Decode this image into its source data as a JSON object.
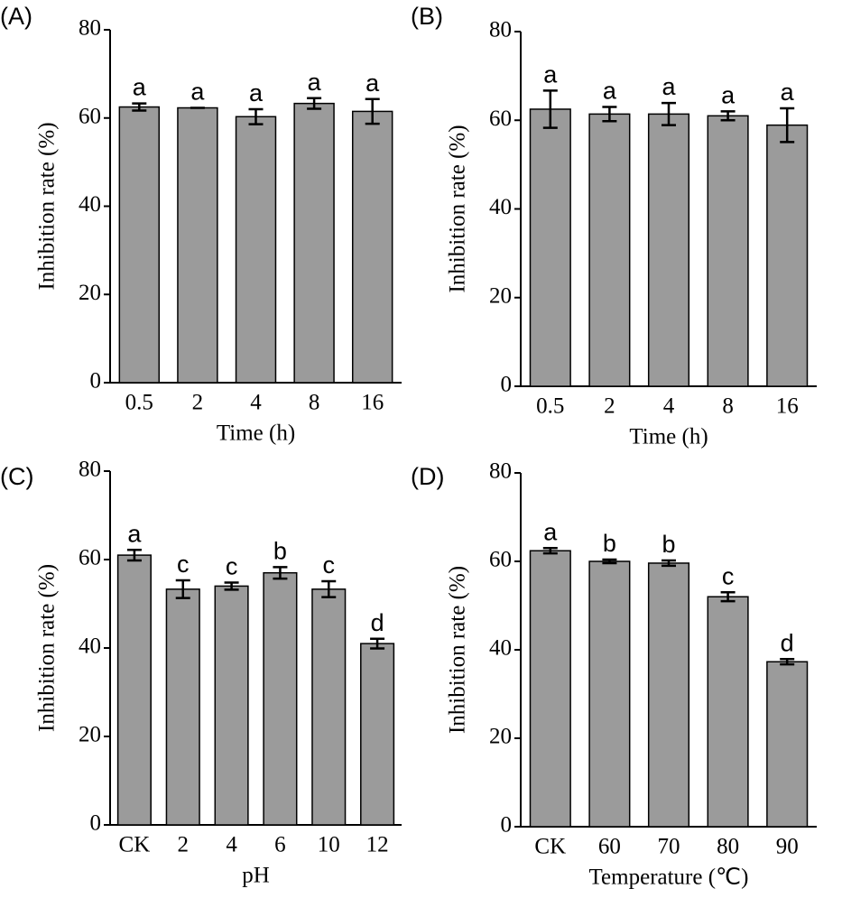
{
  "chart_data": [
    {
      "type": "bar",
      "panel_label": "(A)",
      "x_label": "Time (h)",
      "y_label": "Inhibition rate (%)",
      "categories": [
        "0.5",
        "2",
        "4",
        "8",
        "16"
      ],
      "values": [
        62.5,
        62.3,
        60.3,
        63.3,
        61.5
      ],
      "errors": [
        0.8,
        0,
        1.7,
        1.2,
        2.8
      ],
      "annotations": [
        "a",
        "a",
        "a",
        "a",
        "a"
      ],
      "color": "#9b9b9b",
      "ylim": [
        0,
        80
      ],
      "yticks": [
        0,
        20,
        40,
        60,
        80
      ]
    },
    {
      "type": "bar",
      "panel_label": "(B)",
      "x_label": "Time (h)",
      "y_label": "Inhibition rate (%)",
      "categories": [
        "0.5",
        "2",
        "4",
        "8",
        "16"
      ],
      "values": [
        62.5,
        61.4,
        61.4,
        61,
        58.9
      ],
      "errors": [
        4.2,
        1.6,
        2.5,
        1,
        3.8
      ],
      "annotations": [
        "a",
        "a",
        "a",
        "a",
        "a"
      ],
      "color": "#9b9b9b",
      "ylim": [
        0,
        80
      ],
      "yticks": [
        0,
        20,
        40,
        60,
        80
      ]
    },
    {
      "type": "bar",
      "panel_label": "(C)",
      "x_label": "pH",
      "y_label": "Inhibition rate (%)",
      "categories": [
        "CK",
        "2",
        "4",
        "6",
        "10",
        "12"
      ],
      "values": [
        61,
        53.3,
        54,
        57,
        53.3,
        41
      ],
      "errors": [
        1.2,
        2,
        0.8,
        1.3,
        1.8,
        1.1
      ],
      "annotations": [
        "a",
        "c",
        "c",
        "b",
        "c",
        "d"
      ],
      "color": "#9b9b9b",
      "ylim": [
        0,
        80
      ],
      "yticks": [
        0,
        20,
        40,
        60,
        80
      ]
    },
    {
      "type": "bar",
      "panel_label": "(D)",
      "x_label": "Temperature (℃)",
      "y_label": "Inhibition rate (%)",
      "categories": [
        "CK",
        "60",
        "70",
        "80",
        "90"
      ],
      "values": [
        62.4,
        60,
        59.6,
        52,
        37.3
      ],
      "errors": [
        0.6,
        0.4,
        0.6,
        1,
        0.6
      ],
      "annotations": [
        "a",
        "b",
        "b",
        "c",
        "d"
      ],
      "color": "#9b9b9b",
      "ylim": [
        0,
        80
      ],
      "yticks": [
        0,
        20,
        40,
        60,
        80
      ]
    }
  ]
}
